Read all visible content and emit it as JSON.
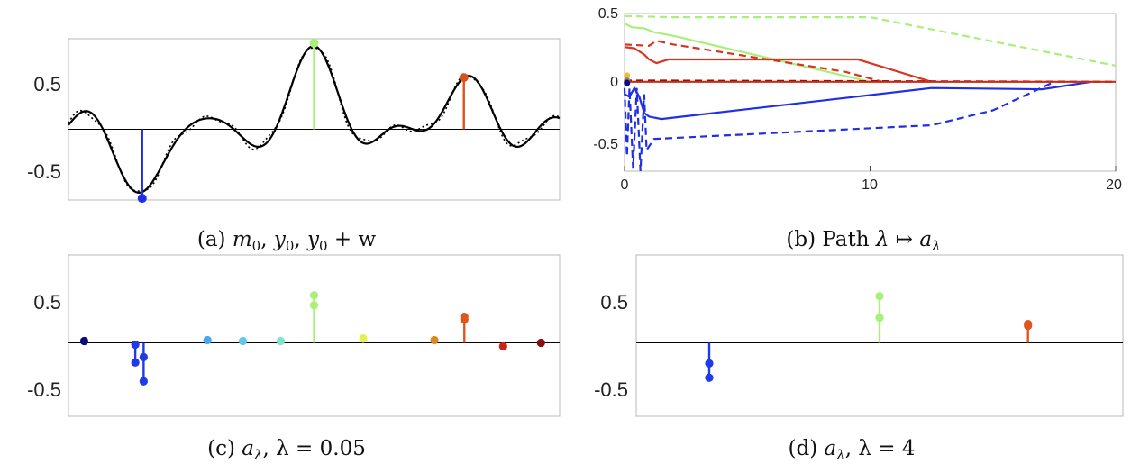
{
  "chart_data": [
    {
      "id": "a",
      "type": "line",
      "caption": "(a) m₀, y₀, y₀ + w",
      "yticks": [
        "0.5",
        "-0.5"
      ],
      "ylim": [
        -0.82,
        1.05
      ],
      "xlim": [
        0,
        1
      ],
      "series": [
        {
          "name": "y0",
          "style": "solid",
          "color": "#000000"
        },
        {
          "name": "y0 + w",
          "style": "dotted",
          "color": "#000000"
        }
      ],
      "spikes": [
        {
          "name": "m0 spike 1",
          "x": 0.15,
          "y": -0.8,
          "color": "#1f2fe6"
        },
        {
          "name": "m0 spike 2",
          "x": 0.5,
          "y": 1.0,
          "color": "#a8f07a"
        },
        {
          "name": "m0 spike 3",
          "x": 0.805,
          "y": 0.6,
          "color": "#d9531e"
        }
      ]
    },
    {
      "id": "b",
      "type": "line",
      "caption": "(b) Path λ ↦ a_λ",
      "xticks": [
        "0",
        "10",
        "20"
      ],
      "yticks": [
        "0.5",
        "0",
        "-0.5"
      ],
      "xlim": [
        0,
        20
      ],
      "ylim": [
        -0.72,
        0.55
      ],
      "series": [
        {
          "name": "green solid",
          "color": "#a8f07a",
          "dash": false,
          "points": [
            [
              0,
              0.47
            ],
            [
              0.3,
              0.44
            ],
            [
              0.8,
              0.43
            ],
            [
              1.2,
              0.4
            ],
            [
              2,
              0.37
            ],
            [
              10,
              0
            ]
          ]
        },
        {
          "name": "green dashed",
          "color": "#a8f07a",
          "dash": true,
          "points": [
            [
              0,
              0.53
            ],
            [
              2,
              0.52
            ],
            [
              10,
              0.52
            ],
            [
              20,
              0.13
            ]
          ]
        },
        {
          "name": "red solid",
          "color": "#d9341e",
          "dash": false,
          "points": [
            [
              0,
              0.28
            ],
            [
              0.4,
              0.27
            ],
            [
              0.8,
              0.22
            ],
            [
              1.0,
              0.18
            ],
            [
              1.3,
              0.15
            ],
            [
              1.8,
              0.18
            ],
            [
              9.5,
              0.18
            ],
            [
              12.5,
              0
            ]
          ]
        },
        {
          "name": "red dashed",
          "color": "#d9341e",
          "dash": true,
          "points": [
            [
              0,
              0.3
            ],
            [
              1,
              0.29
            ],
            [
              1.3,
              0.33
            ],
            [
              2,
              0.3
            ],
            [
              9,
              0.08
            ],
            [
              10.5,
              0
            ]
          ]
        },
        {
          "name": "blue solid",
          "color": "#1f2fe6",
          "dash": false,
          "points": [
            [
              0,
              -0.1
            ],
            [
              0.2,
              -0.12
            ],
            [
              0.4,
              -0.05
            ],
            [
              0.6,
              -0.12
            ],
            [
              0.8,
              -0.25
            ],
            [
              1.0,
              -0.28
            ],
            [
              1.5,
              -0.3
            ],
            [
              12.5,
              -0.05
            ],
            [
              17,
              -0.06
            ],
            [
              19,
              0
            ]
          ]
        },
        {
          "name": "blue dashed",
          "color": "#1f2fe6",
          "dash": true,
          "points": [
            [
              0,
              -0.05
            ],
            [
              0.1,
              -0.6
            ],
            [
              0.2,
              -0.05
            ],
            [
              0.35,
              -0.7
            ],
            [
              0.5,
              -0.05
            ],
            [
              0.65,
              -0.72
            ],
            [
              0.8,
              -0.1
            ],
            [
              0.9,
              -0.55
            ],
            [
              1.2,
              -0.46
            ],
            [
              12.5,
              -0.35
            ],
            [
              15,
              -0.23
            ],
            [
              17.5,
              0
            ]
          ]
        },
        {
          "name": "dark red dashed",
          "color": "#7a1208",
          "dash": true,
          "points": [
            [
              0,
              0.01
            ],
            [
              20,
              0
            ]
          ]
        },
        {
          "name": "baseline",
          "color": "#cc2a14",
          "dash": false,
          "points": [
            [
              0,
              0
            ],
            [
              20,
              0
            ]
          ]
        }
      ]
    },
    {
      "id": "c",
      "type": "scatter",
      "caption": "(c) a_λ, λ = 0.05",
      "yticks": [
        "0.5",
        "-0.5"
      ],
      "xlim": [
        0,
        1
      ],
      "ylim": [
        -0.82,
        0.98
      ],
      "stems": [
        {
          "x": 0.032,
          "values": [
            0.02
          ],
          "color": "#0a0a80"
        },
        {
          "x": 0.136,
          "values": [
            -0.02,
            -0.22
          ],
          "color": "#1f3ae6"
        },
        {
          "x": 0.153,
          "values": [
            -0.16,
            -0.43
          ],
          "color": "#1f3ae6"
        },
        {
          "x": 0.283,
          "values": [
            0.03
          ],
          "color": "#4aa8f0"
        },
        {
          "x": 0.355,
          "values": [
            0.02
          ],
          "color": "#5ec8f0"
        },
        {
          "x": 0.432,
          "values": [
            0.02
          ],
          "color": "#7ee6c8"
        },
        {
          "x": 0.5,
          "values": [
            0.42,
            0.53
          ],
          "color": "#a8f07a"
        },
        {
          "x": 0.6,
          "values": [
            0.05
          ],
          "color": "#e6f050"
        },
        {
          "x": 0.745,
          "values": [
            0.03
          ],
          "color": "#d98a1e"
        },
        {
          "x": 0.806,
          "values": [
            0.26,
            0.29
          ],
          "color": "#e0551e"
        },
        {
          "x": 0.885,
          "values": [
            -0.04
          ],
          "color": "#cc2218"
        },
        {
          "x": 0.962,
          "values": [
            0.0
          ],
          "color": "#8a1010"
        }
      ]
    },
    {
      "id": "d",
      "type": "scatter",
      "caption": "(d) a_λ, λ = 4",
      "yticks": [
        "0.5",
        "-0.5"
      ],
      "xlim": [
        0,
        1
      ],
      "ylim": [
        -0.82,
        0.98
      ],
      "stems": [
        {
          "x": 0.15,
          "values": [
            -0.23,
            -0.39
          ],
          "color": "#1f3ae6"
        },
        {
          "x": 0.5,
          "values": [
            0.28,
            0.52
          ],
          "color": "#a8f07a"
        },
        {
          "x": 0.805,
          "values": [
            0.19,
            0.21
          ],
          "color": "#e0551e"
        }
      ]
    }
  ],
  "captions_math": {
    "a": {
      "prefix": "(a) ",
      "m": "m",
      "sub0": "0",
      "y": "y",
      "plus": "+ w"
    },
    "b": {
      "prefix": "(b) Path ",
      "lambda": "λ",
      "mapsto": "↦",
      "a": "a",
      "sub": "λ"
    },
    "c": {
      "prefix": "(c) ",
      "a": "a",
      "sub": "λ",
      "rest": "λ = 0.05"
    },
    "d": {
      "prefix": "(d) ",
      "a": "a",
      "sub": "λ",
      "rest": "λ = 4"
    }
  }
}
